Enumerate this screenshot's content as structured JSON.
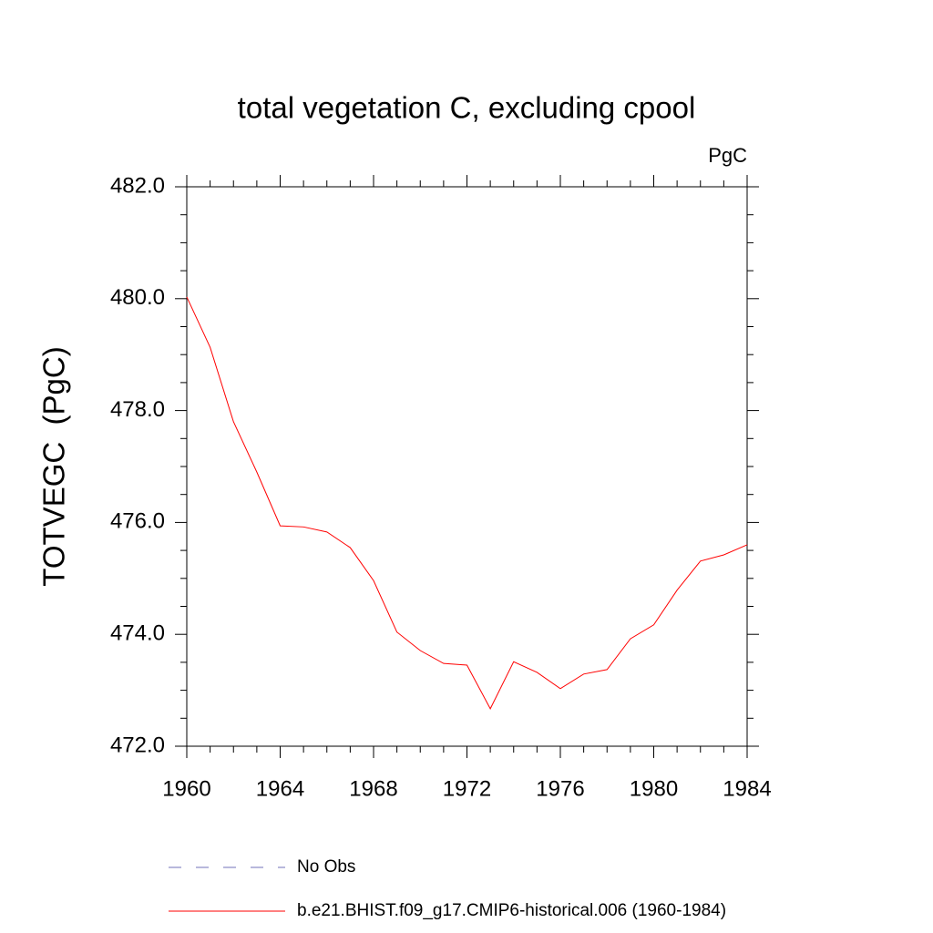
{
  "chart_data": {
    "type": "line",
    "title": "total vegetation C, excluding cpool",
    "units": "PgC",
    "y_label": "TOTVEGC  (PgC)",
    "x": [
      1960,
      1961,
      1962,
      1963,
      1964,
      1965,
      1966,
      1967,
      1968,
      1969,
      1970,
      1971,
      1972,
      1973,
      1974,
      1975,
      1976,
      1977,
      1978,
      1979,
      1980,
      1981,
      1982,
      1983,
      1984
    ],
    "series": [
      {
        "name": "b.e21.BHIST.f09_g17.CMIP6-historical.006 (1960-1984)",
        "color": "#ff0000",
        "values": [
          480.03,
          479.13,
          477.8,
          476.9,
          475.94,
          475.92,
          475.83,
          475.55,
          474.96,
          474.04,
          473.71,
          473.48,
          473.45,
          472.67,
          473.51,
          473.32,
          473.03,
          473.29,
          473.37,
          473.92,
          474.17,
          474.79,
          475.31,
          475.42,
          475.6
        ]
      }
    ],
    "legend_extra": [
      {
        "name": "No Obs",
        "color": "#7070b8",
        "dashed": true
      }
    ],
    "xlim": [
      1960,
      1984
    ],
    "xticks": [
      1960,
      1964,
      1968,
      1972,
      1976,
      1980,
      1984
    ],
    "ylim": [
      472,
      482
    ],
    "yticks": [
      {
        "value": 472,
        "label": "472.0"
      },
      {
        "value": 474,
        "label": "474.0"
      },
      {
        "value": 476,
        "label": "476.0"
      },
      {
        "value": 478,
        "label": "478.0"
      },
      {
        "value": 480,
        "label": "480.0"
      },
      {
        "value": 482,
        "label": "482.0"
      }
    ]
  }
}
